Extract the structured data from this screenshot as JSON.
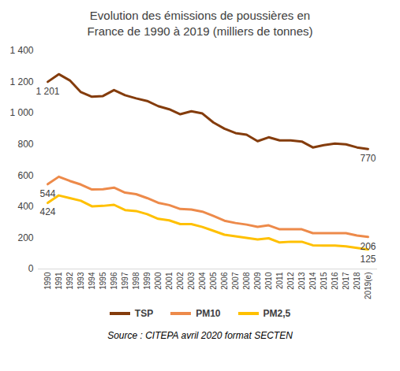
{
  "chart_data": {
    "type": "line",
    "title": "Evolution des émissions de poussières en France de 1990 à 2019 (milliers de tonnes)",
    "caption": "Source : CITEPA avril 2020 format SECTEN",
    "categories": [
      "1990",
      "1991",
      "1992",
      "1993",
      "1994",
      "1995",
      "1996",
      "1997",
      "1998",
      "1999",
      "2000",
      "2001",
      "2002",
      "2003",
      "2004",
      "2005",
      "2006",
      "2007",
      "2008",
      "2009",
      "2010",
      "2011",
      "2012",
      "2013",
      "2014",
      "2015",
      "2016",
      "2017",
      "2018",
      "2019(e)"
    ],
    "series": [
      {
        "name": "TSP",
        "color": "#843c0c",
        "values": [
          1201,
          1250,
          1210,
          1135,
          1105,
          1110,
          1148,
          1115,
          1095,
          1078,
          1045,
          1025,
          993,
          1012,
          998,
          940,
          900,
          872,
          862,
          820,
          845,
          825,
          825,
          818,
          780,
          795,
          805,
          800,
          780,
          770
        ]
      },
      {
        "name": "PM10",
        "color": "#ed8a4a",
        "values": [
          544,
          592,
          565,
          542,
          510,
          512,
          522,
          490,
          480,
          455,
          425,
          410,
          385,
          382,
          368,
          340,
          310,
          295,
          285,
          270,
          280,
          255,
          255,
          255,
          230,
          230,
          230,
          230,
          215,
          206
        ]
      },
      {
        "name": "PM2,5",
        "color": "#ffc000",
        "values": [
          424,
          472,
          455,
          438,
          402,
          405,
          412,
          378,
          372,
          352,
          322,
          312,
          288,
          288,
          270,
          245,
          220,
          210,
          200,
          190,
          197,
          170,
          175,
          175,
          152,
          150,
          150,
          145,
          135,
          125
        ]
      }
    ],
    "annotations": [
      {
        "x": "1990",
        "y": 1201,
        "text": "1 201"
      },
      {
        "x": "1990",
        "y": 544,
        "text": "544"
      },
      {
        "x": "1990",
        "y": 424,
        "text": "424"
      },
      {
        "x": "2019(e)",
        "y": 770,
        "text": "770"
      },
      {
        "x": "2019(e)",
        "y": 206,
        "text": "206"
      },
      {
        "x": "2019(e)",
        "y": 125,
        "text": "125"
      }
    ],
    "ylim": [
      0,
      1400
    ],
    "yticks": [
      0,
      200,
      400,
      600,
      800,
      {
        "value": 1000,
        "label": "1 000"
      },
      {
        "value": 1200,
        "label": "1 200"
      },
      {
        "value": 1400,
        "label": "1 400"
      }
    ],
    "grid": false,
    "legend": "bottom"
  }
}
